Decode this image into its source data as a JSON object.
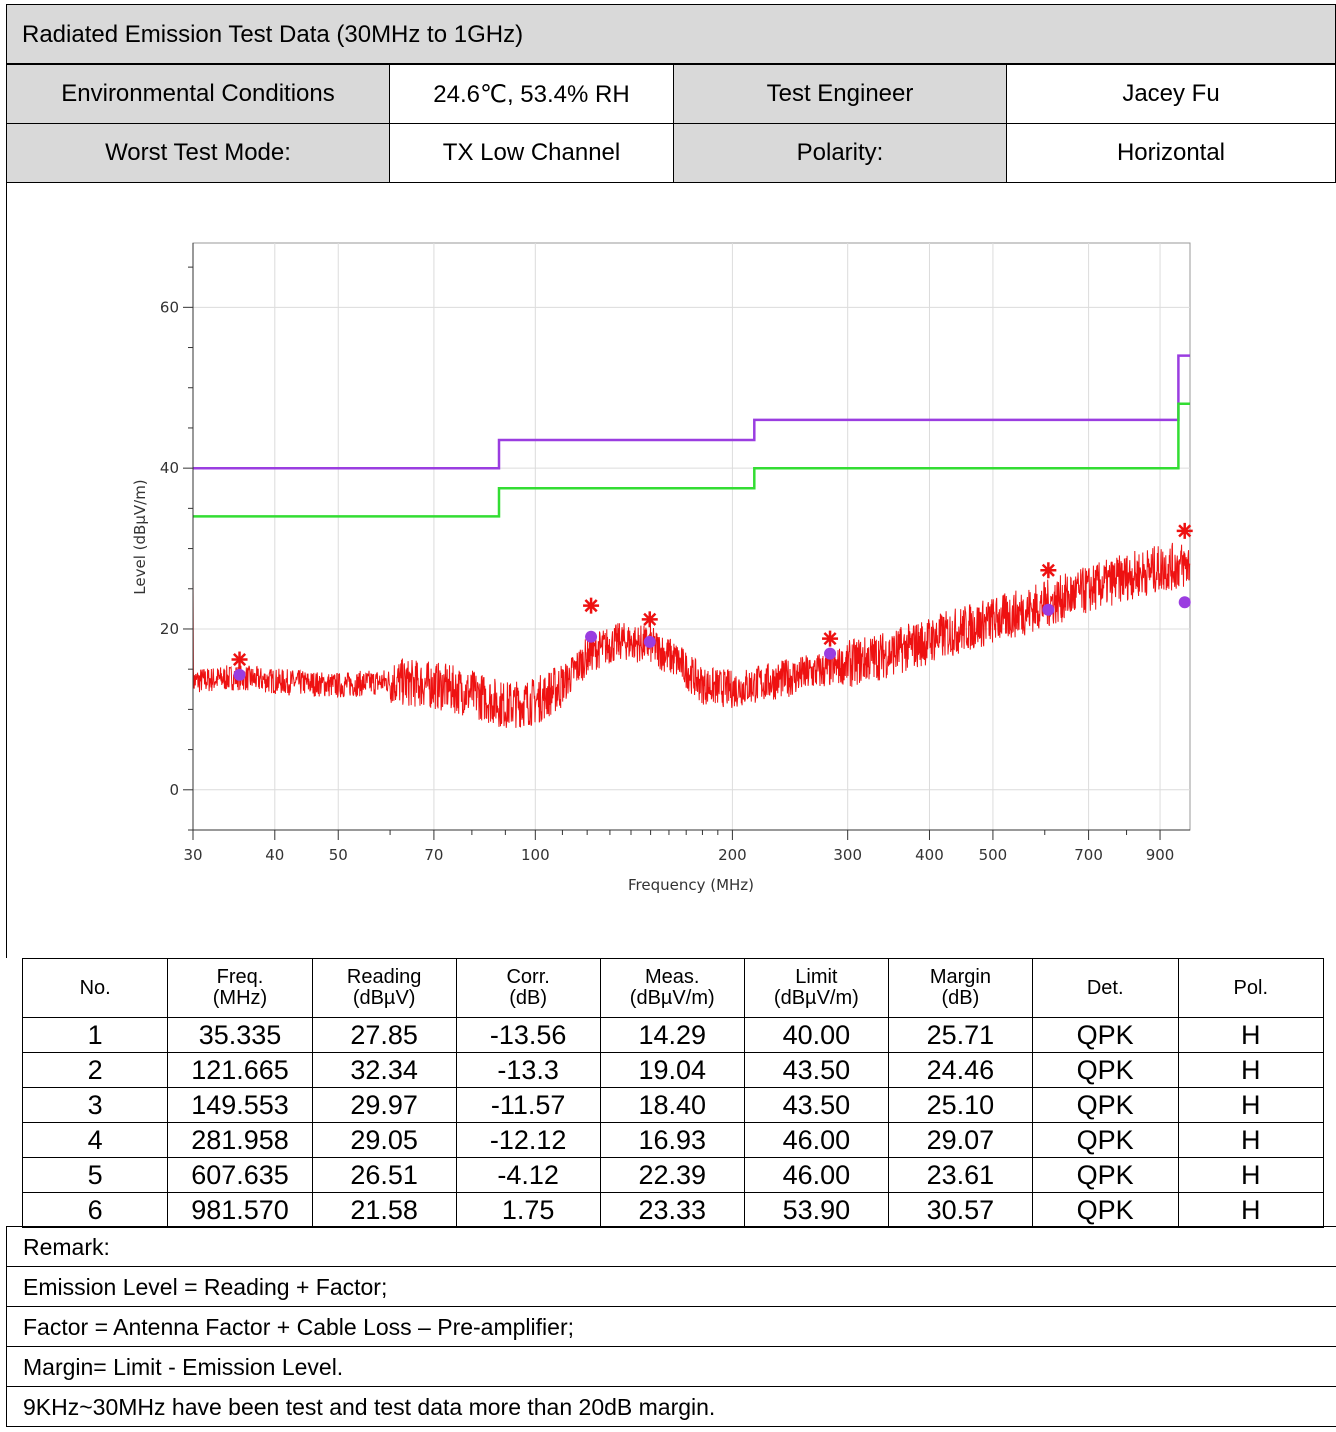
{
  "report": {
    "title": "Radiated Emission Test Data (30MHz to 1GHz)",
    "env_label": "Environmental Conditions",
    "env_value": "24.6℃, 53.4% RH",
    "engineer_label": "Test Engineer",
    "engineer_value": "Jacey Fu",
    "mode_label": "Worst Test Mode:",
    "mode_value": "TX Low Channel",
    "polarity_label": "Polarity:",
    "polarity_value": "Horizontal"
  },
  "chart_data": {
    "type": "line",
    "xlabel": "Frequency (MHz)",
    "ylabel": "Level (dBµV/m)",
    "x_scale": "log",
    "xlim": [
      30,
      1000
    ],
    "ylim": [
      -5,
      68
    ],
    "x_ticks": [
      30,
      40,
      50,
      70,
      100,
      200,
      300,
      400,
      500,
      700,
      900
    ],
    "y_ticks": [
      0,
      20,
      40,
      60
    ],
    "grid": true,
    "series": [
      {
        "name": "",
        "color": "#9a3de0",
        "points": [
          [
            30,
            40
          ],
          [
            88,
            40
          ],
          [
            88,
            43.5
          ],
          [
            216,
            43.5
          ],
          [
            216,
            46
          ],
          [
            960,
            46
          ],
          [
            960,
            54
          ],
          [
            1000,
            54
          ]
        ]
      },
      {
        "name": "",
        "color": "#33dd33",
        "points": [
          [
            30,
            34
          ],
          [
            88,
            34
          ],
          [
            88,
            37.5
          ],
          [
            216,
            37.5
          ],
          [
            216,
            40
          ],
          [
            960,
            40
          ],
          [
            960,
            48
          ],
          [
            1000,
            48
          ]
        ]
      },
      {
        "name": "",
        "color": "#ee1111",
        "points": [
          [
            30,
            13.5
          ],
          [
            35,
            14
          ],
          [
            40,
            13.5
          ],
          [
            50,
            13
          ],
          [
            60,
            13.5
          ],
          [
            70,
            13
          ],
          [
            80,
            12
          ],
          [
            90,
            10.5
          ],
          [
            100,
            11
          ],
          [
            110,
            13
          ],
          [
            121,
            17
          ],
          [
            135,
            18.5
          ],
          [
            150,
            18
          ],
          [
            165,
            16
          ],
          [
            180,
            13
          ],
          [
            200,
            12.5
          ],
          [
            230,
            13.5
          ],
          [
            280,
            15
          ],
          [
            350,
            17
          ],
          [
            450,
            20
          ],
          [
            550,
            22
          ],
          [
            650,
            24
          ],
          [
            800,
            26.5
          ],
          [
            900,
            27.5
          ],
          [
            1000,
            28
          ]
        ]
      }
    ],
    "peaks": [
      {
        "x": 35.335,
        "y": 16.2
      },
      {
        "x": 121.665,
        "y": 22.9
      },
      {
        "x": 149.553,
        "y": 21.2
      },
      {
        "x": 281.958,
        "y": 18.8
      },
      {
        "x": 607.635,
        "y": 27.3
      },
      {
        "x": 981.57,
        "y": 32.2
      }
    ],
    "qp_points": [
      {
        "x": 35.335,
        "y": 14.29
      },
      {
        "x": 121.665,
        "y": 19.04
      },
      {
        "x": 149.553,
        "y": 18.4
      },
      {
        "x": 281.958,
        "y": 16.93
      },
      {
        "x": 607.635,
        "y": 22.39
      },
      {
        "x": 981.57,
        "y": 23.33
      }
    ]
  },
  "table": {
    "headers": [
      [
        "No.",
        ""
      ],
      [
        "Freq.",
        "(MHz)"
      ],
      [
        "Reading",
        "(dBµV)"
      ],
      [
        "Corr.",
        "(dB)"
      ],
      [
        "Meas.",
        "(dBµV/m)"
      ],
      [
        "Limit",
        "(dBµV/m)"
      ],
      [
        "Margin",
        "(dB)"
      ],
      [
        "Det.",
        ""
      ],
      [
        "Pol.",
        ""
      ]
    ],
    "rows": [
      [
        "1",
        "35.335",
        "27.85",
        "-13.56",
        "14.29",
        "40.00",
        "25.71",
        "QPK",
        "H"
      ],
      [
        "2",
        "121.665",
        "32.34",
        "-13.3",
        "19.04",
        "43.50",
        "24.46",
        "QPK",
        "H"
      ],
      [
        "3",
        "149.553",
        "29.97",
        "-11.57",
        "18.40",
        "43.50",
        "25.10",
        "QPK",
        "H"
      ],
      [
        "4",
        "281.958",
        "29.05",
        "-12.12",
        "16.93",
        "46.00",
        "29.07",
        "QPK",
        "H"
      ],
      [
        "5",
        "607.635",
        "26.51",
        "-4.12",
        "22.39",
        "46.00",
        "23.61",
        "QPK",
        "H"
      ],
      [
        "6",
        "981.570",
        "21.58",
        "1.75",
        "23.33",
        "53.90",
        "30.57",
        "QPK",
        "H"
      ]
    ]
  },
  "remarks": [
    "Remark:",
    "Emission Level = Reading + Factor;",
    "Factor = Antenna Factor + Cable Loss – Pre-amplifier;",
    "Margin= Limit - Emission Level.",
    "9KHz~30MHz have been test and test data more than 20dB margin."
  ]
}
